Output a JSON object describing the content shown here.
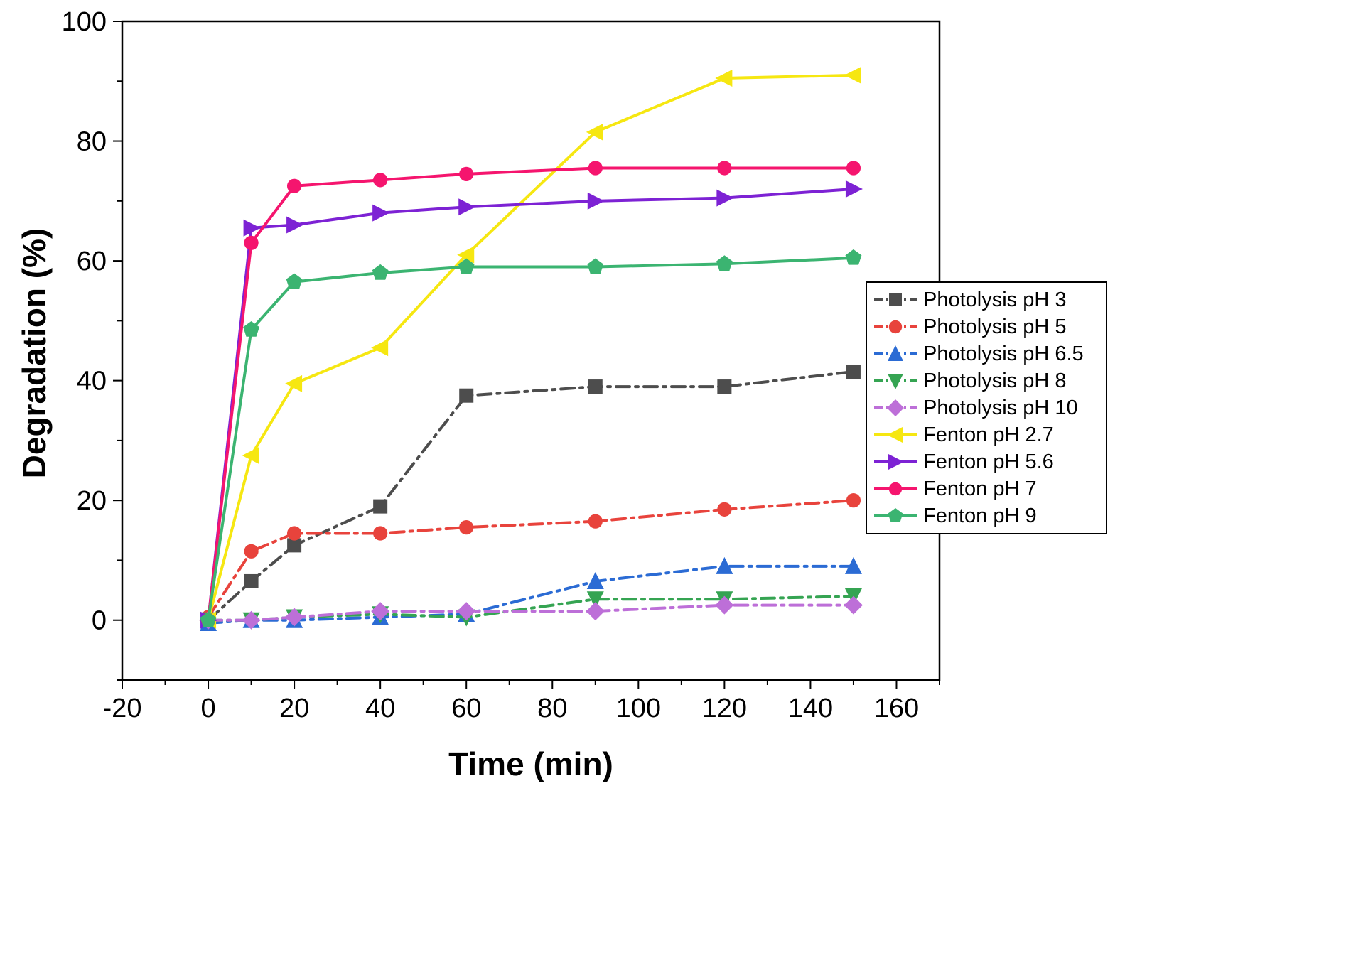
{
  "chart_data": {
    "type": "line",
    "title": "",
    "xlabel": "Time (min)",
    "ylabel": "Degradation (%)",
    "xlim": [
      -20,
      170
    ],
    "ylim": [
      -10,
      100
    ],
    "xticks": [
      -20,
      0,
      20,
      40,
      60,
      80,
      100,
      120,
      140,
      160
    ],
    "yticks": [
      0,
      20,
      40,
      60,
      80,
      100
    ],
    "x_minor_step": 10,
    "y_minor_step": 10,
    "grid": false,
    "legend_position": "right-center",
    "x": [
      0,
      10,
      20,
      40,
      60,
      90,
      120,
      150
    ],
    "series": [
      {
        "name": "Photolysis pH 3",
        "color": "#4d4d4d",
        "marker": "square",
        "line_style": "dashdot",
        "values": [
          0,
          6.5,
          12.5,
          19,
          37.5,
          39,
          39,
          41.5
        ]
      },
      {
        "name": "Photolysis pH 5",
        "color": "#e8433c",
        "marker": "circle",
        "line_style": "dashdot",
        "values": [
          0.5,
          11.5,
          14.5,
          14.5,
          15.5,
          16.5,
          18.5,
          20
        ]
      },
      {
        "name": "Photolysis pH 6.5",
        "color": "#2b6bd4",
        "marker": "triangle-up",
        "line_style": "dashdot",
        "values": [
          -0.5,
          0,
          0,
          0.5,
          1,
          6.5,
          9,
          9
        ]
      },
      {
        "name": "Photolysis pH 8",
        "color": "#35a452",
        "marker": "triangle-down",
        "line_style": "dashdot",
        "values": [
          0,
          0,
          0.5,
          1,
          0.5,
          3.5,
          3.5,
          4
        ]
      },
      {
        "name": "Photolysis pH 10",
        "color": "#bd6fd8",
        "marker": "diamond",
        "line_style": "dashdot",
        "values": [
          0,
          0,
          0.5,
          1.5,
          1.5,
          1.5,
          2.5,
          2.5
        ]
      },
      {
        "name": "Fenton pH 2.7",
        "color": "#f6e711",
        "marker": "triangle-left",
        "line_style": "solid",
        "values": [
          0,
          27.5,
          39.5,
          45.5,
          61,
          81.5,
          90.5,
          91
        ]
      },
      {
        "name": "Fenton pH 5.6",
        "color": "#7d22d4",
        "marker": "triangle-right",
        "line_style": "solid",
        "values": [
          0,
          65.5,
          66,
          68,
          69,
          70,
          70.5,
          72
        ]
      },
      {
        "name": "Fenton pH 7",
        "color": "#f5156e",
        "marker": "circle",
        "line_style": "solid",
        "values": [
          0,
          63,
          72.5,
          73.5,
          74.5,
          75.5,
          75.5,
          75.5
        ]
      },
      {
        "name": "Fenton pH 9",
        "color": "#3bb471",
        "marker": "pentagon",
        "line_style": "solid",
        "values": [
          0,
          48.5,
          56.5,
          58,
          59,
          59,
          59.5,
          60.5
        ]
      }
    ]
  }
}
